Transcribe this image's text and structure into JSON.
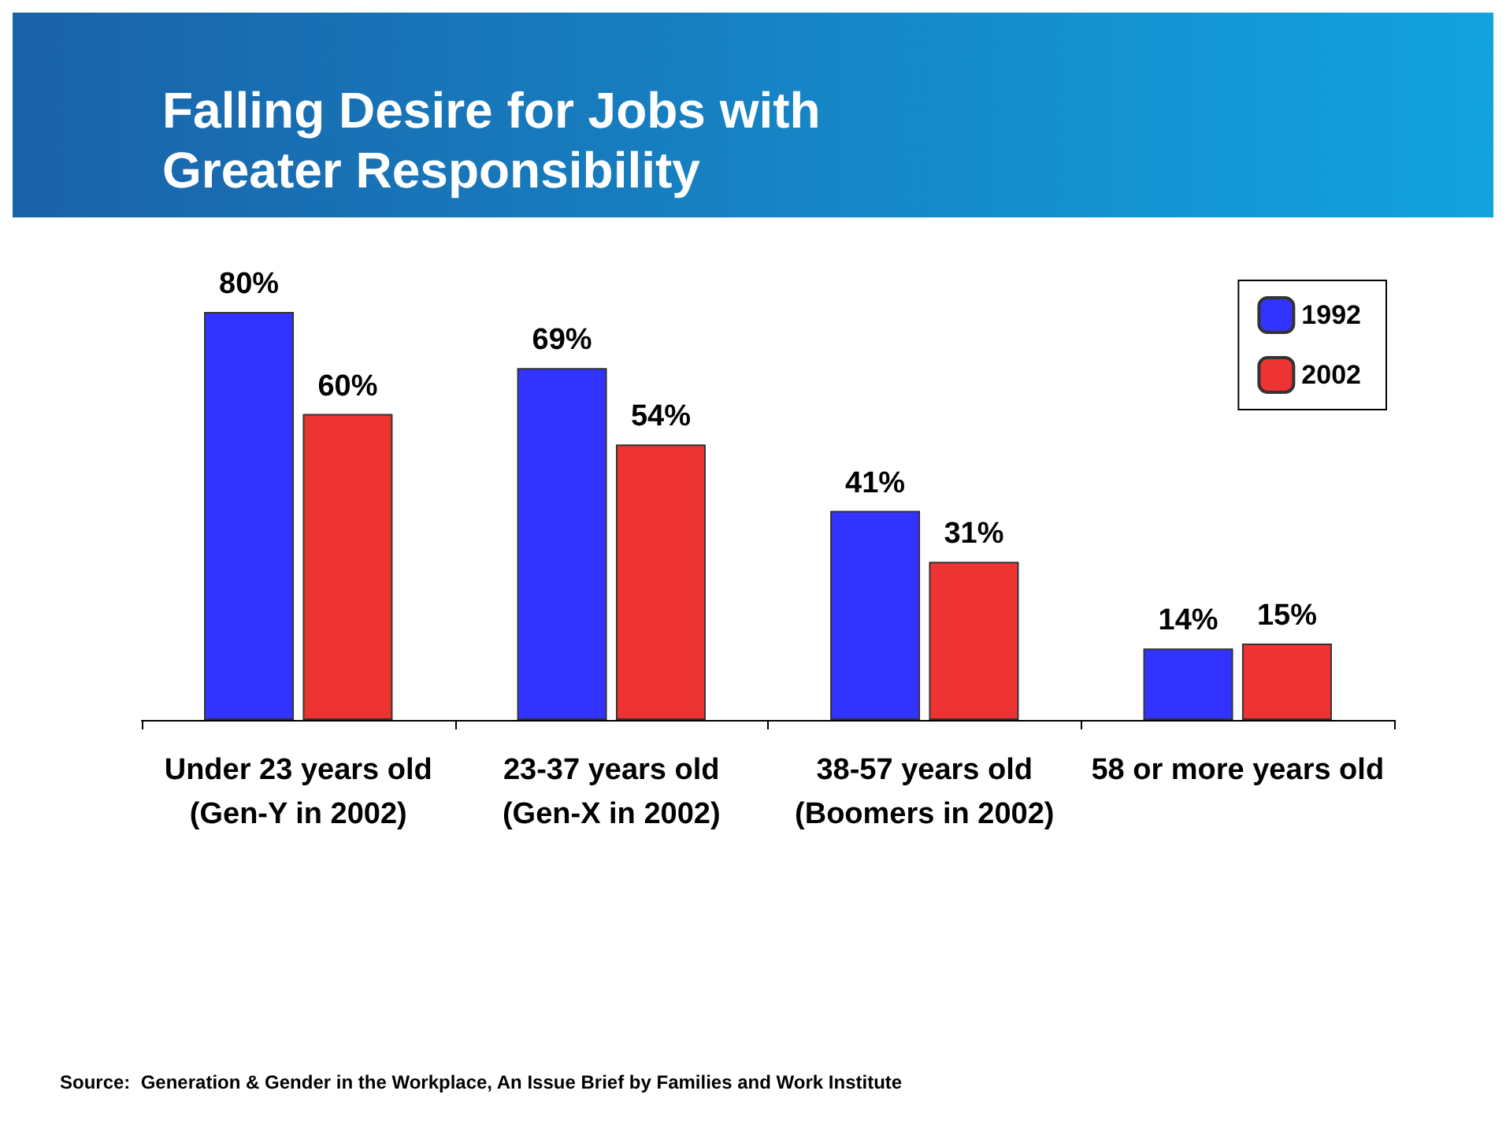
{
  "chart_data": {
    "type": "bar",
    "title": "Falling Desire for Jobs with Greater Responsibility",
    "categories": [
      "Under 23 years old\n(Gen-Y in 2002)",
      "23-37 years old\n(Gen-X in 2002)",
      "38-57 years old\n(Boomers in 2002)",
      "58 or more years old"
    ],
    "series": [
      {
        "name": "1992",
        "color": "#3333ff",
        "values": [
          80,
          69,
          41,
          14
        ],
        "value_labels": [
          "80%",
          "69%",
          "41%",
          "14%"
        ]
      },
      {
        "name": "2002",
        "color": "#ee3333",
        "values": [
          60,
          54,
          31,
          15
        ],
        "value_labels": [
          "60%",
          "54%",
          "31%",
          "15%"
        ]
      }
    ],
    "legend": "top right",
    "annotations": [
      "Source:  Generation & Gender in the Workplace, An Issue Brief by Families and Work Institute"
    ]
  }
}
